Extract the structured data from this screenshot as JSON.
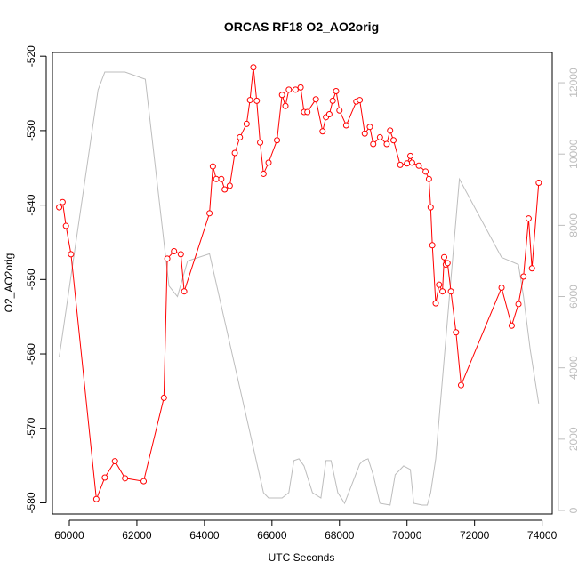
{
  "chart_data": {
    "type": "line",
    "title": "ORCAS RF18 O2_AO2orig",
    "xlabel": "UTC Seconds",
    "ylabel": "O2_AO2orig",
    "xlim": [
      59500,
      74300
    ],
    "ylim": [
      -581.5,
      -519.5
    ],
    "y2lim": [
      -100,
      12850
    ],
    "xticks": [
      60000,
      62000,
      64000,
      66000,
      68000,
      70000,
      72000,
      74000
    ],
    "yticks": [
      -580,
      -570,
      -560,
      -550,
      -540,
      -530,
      -520
    ],
    "y2ticks": [
      0,
      2000,
      4000,
      6000,
      8000,
      10000,
      12000
    ],
    "grid": false,
    "legend": "none",
    "series": [
      {
        "axis": "left",
        "color": "#ff0000",
        "style": "line+open-circles",
        "x": [
          59700,
          59800,
          59900,
          60050,
          60800,
          61050,
          61350,
          61650,
          62200,
          62800,
          62900,
          63100,
          63300,
          63400,
          64150,
          64250,
          64350,
          64500,
          64600,
          64750,
          64900,
          65050,
          65250,
          65350,
          65450,
          65550,
          65650,
          65750,
          65900,
          66150,
          66300,
          66400,
          66500,
          66700,
          66850,
          66950,
          67050,
          67300,
          67500,
          67600,
          67700,
          67800,
          67900,
          68000,
          68200,
          68500,
          68600,
          68750,
          68900,
          69000,
          69200,
          69400,
          69500,
          69600,
          69800,
          70000,
          70100,
          70150,
          70350,
          70550,
          70650,
          70700,
          70750,
          70850,
          70950,
          71050,
          71100,
          71150,
          71200,
          71300,
          71450,
          71600,
          72800,
          73100,
          73300,
          73450,
          73600,
          73700,
          73900
        ],
        "y": [
          -540.3,
          -539.6,
          -542.8,
          -546.6,
          -579.5,
          -576.6,
          -574.4,
          -576.7,
          -577.1,
          -565.9,
          -547.2,
          -546.2,
          -546.6,
          -551.6,
          -541.1,
          -534.8,
          -536.5,
          -536.5,
          -537.9,
          -537.4,
          -533.0,
          -530.9,
          -529.1,
          -525.9,
          -521.5,
          -526.0,
          -531.6,
          -535.8,
          -534.3,
          -531.3,
          -525.2,
          -526.7,
          -524.5,
          -524.5,
          -524.2,
          -527.5,
          -527.5,
          -525.8,
          -530.1,
          -528.2,
          -527.8,
          -526.0,
          -524.7,
          -527.3,
          -529.3,
          -526.1,
          -525.9,
          -530.4,
          -529.5,
          -531.8,
          -530.9,
          -531.8,
          -530.0,
          -531.3,
          -534.6,
          -534.4,
          -533.4,
          -534.3,
          -534.7,
          -535.5,
          -536.5,
          -540.3,
          -545.4,
          -553.2,
          -550.7,
          -551.6,
          -547.0,
          -548.0,
          -547.8,
          -551.6,
          -557.1,
          -564.2,
          -551.1,
          -556.2,
          -553.3,
          -549.6,
          -541.8,
          -548.5,
          -537.0
        ]
      },
      {
        "axis": "right",
        "color": "#bdbdbd",
        "style": "line",
        "x": [
          59700,
          60850,
          61050,
          61650,
          62250,
          62950,
          63200,
          63500,
          64150,
          65750,
          65900,
          66300,
          66500,
          66650,
          66800,
          66950,
          67200,
          67450,
          67600,
          67750,
          67950,
          68150,
          68600,
          68700,
          68850,
          69000,
          69200,
          69500,
          69650,
          69900,
          70100,
          70200,
          70450,
          70600,
          70700,
          70850,
          71550,
          72800,
          73300,
          73450,
          73650,
          73900
        ],
        "y": [
          4300,
          11800,
          12300,
          12300,
          12100,
          6300,
          6000,
          7000,
          7200,
          500,
          350,
          350,
          500,
          1400,
          1450,
          1250,
          500,
          350,
          1400,
          1400,
          500,
          200,
          1300,
          1400,
          1450,
          1000,
          200,
          150,
          1000,
          1250,
          1150,
          200,
          150,
          150,
          500,
          1450,
          9300,
          7100,
          6900,
          6000,
          4500,
          3000
        ]
      }
    ]
  }
}
